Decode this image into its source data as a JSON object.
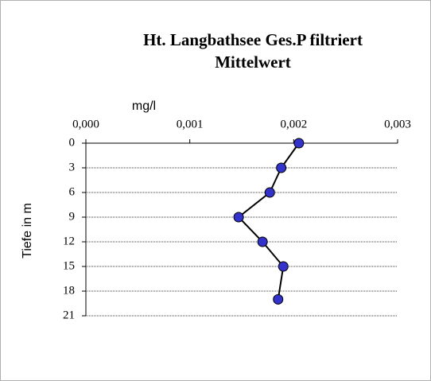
{
  "chart_data": {
    "type": "line",
    "title": "Ht. Langbathsee Ges.P filtriert",
    "subtitle": "Mittelwert",
    "xlabel": "mg/l",
    "ylabel": "Tiefe in m",
    "y": [
      0,
      3,
      6,
      9,
      12,
      15,
      19
    ],
    "values": [
      0.00205,
      0.00188,
      0.00177,
      0.00147,
      0.0017,
      0.0019,
      0.00185
    ],
    "color": "#3333cc",
    "xlim": [
      0,
      0.003
    ],
    "xticks": [
      {
        "value": 0,
        "label": "0,000"
      },
      {
        "value": 0.001,
        "label": "0,001"
      },
      {
        "value": 0.002,
        "label": "0,002"
      },
      {
        "value": 0.003,
        "label": "0,003"
      }
    ],
    "ylim": [
      0,
      21
    ],
    "yticks": [
      0,
      3,
      6,
      9,
      12,
      15,
      18,
      21
    ],
    "y_inverted": true,
    "grid": true
  }
}
